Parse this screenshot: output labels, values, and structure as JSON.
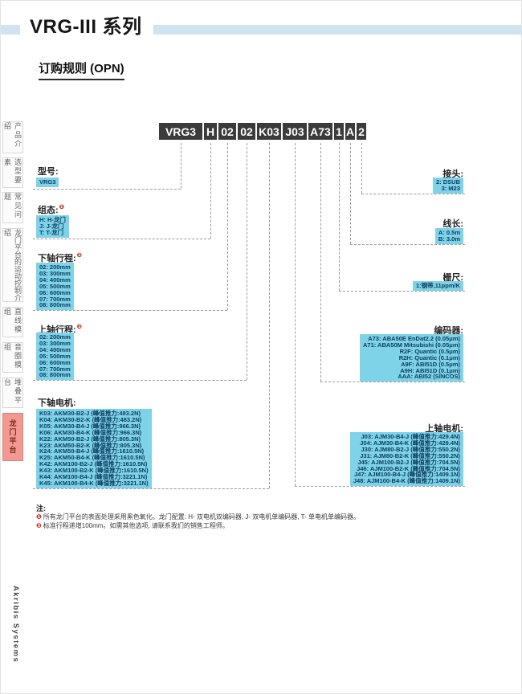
{
  "header": {
    "title": "VRG-III 系列",
    "subtitle": "订购规则 (OPN)"
  },
  "brand": {
    "vertical_text": "Akribis Systems"
  },
  "sidebar": {
    "tabs": [
      {
        "label": "产品介绍",
        "active": false
      },
      {
        "label": "选型要素",
        "active": false
      },
      {
        "label": "常见问题",
        "active": false
      },
      {
        "label": "龙门平台的运动控制介绍",
        "active": false
      },
      {
        "label": "直线模组",
        "active": false
      },
      {
        "label": "音圈模组",
        "active": false
      },
      {
        "label": "堆叠平台",
        "active": false
      },
      {
        "label": "龙门平台",
        "active": true
      }
    ]
  },
  "part_number": {
    "segments": [
      "VRG3",
      "H",
      "02",
      "02",
      "K03",
      "J03",
      "A73",
      "1",
      "A",
      "2"
    ]
  },
  "groups": {
    "left": [
      {
        "title": "型号:",
        "marker": "",
        "options": [
          "VRG3"
        ]
      },
      {
        "title": "组态:",
        "marker": "❶",
        "options": [
          "H: H-龙门",
          "J: J-龙门",
          "T: T-龙门"
        ]
      },
      {
        "title": "下轴行程:",
        "marker": "❷",
        "options": [
          "02: 200mm",
          "03: 300mm",
          "04: 400mm",
          "05: 500mm",
          "06: 600mm",
          "07: 700mm",
          "08: 800mm"
        ]
      },
      {
        "title": "上轴行程:",
        "marker": "❷",
        "options": [
          "02: 200mm",
          "03: 300mm",
          "04: 400mm",
          "05: 500mm",
          "06: 600mm",
          "07: 700mm",
          "08: 800mm"
        ]
      },
      {
        "title": "下轴电机:",
        "marker": "",
        "options": [
          "K03: AKM30-B2-J (峰值推力:483.2N)",
          "K04: AKM30-B2-K (峰值推力:483.2N)",
          "K05: AKM30-B4-J (峰值推力:966.3N)",
          "K06: AKM30-B4-K (峰值推力:966.3N)",
          "K22: AKM50-B2-J (峰值推力:805.3N)",
          "K23: AKM50-B2-K (峰值推力:805.3N)",
          "K24: AKM50-B4-J (峰值推力:1610.5N)",
          "K25: AKM50-B4-K (峰值推力:1610.5N)",
          "K42: AKM100-B2-J (峰值推力:1610.5N)",
          "K43: AKM100-B2-K (峰值推力:1610.5N)",
          "K44: AKM100-B4-J (峰值推力:3221.1N)",
          "K45: AKM100-B4-K (峰值推力:3221.1N)"
        ]
      }
    ],
    "right": [
      {
        "title": "接头:",
        "marker": "",
        "options": [
          "2: DSUB",
          "3: M23"
        ]
      },
      {
        "title": "线长:",
        "marker": "",
        "options": [
          "A: 0.5m",
          "B: 3.0m"
        ]
      },
      {
        "title": "栅尺:",
        "marker": "",
        "options": [
          "1:钢带,11ppm/K"
        ]
      },
      {
        "title": "编码器:",
        "marker": "",
        "options": [
          "A73: ABA50E EnDat2.2 (0.05μm)",
          "A71: ABA50M Mitsubishi (0.05μm)",
          "R2F: Quantic (0.5μm)",
          "R2H: Quantic (0.1μm)",
          "A9F: ABI51D (0.5μm)",
          "A9H: ABI51D (0.1μm)",
          "AAA: ABI52 (SINCOS)"
        ]
      },
      {
        "title": "上轴电机:",
        "marker": "",
        "options": [
          "J03: AJM30-B4-J (峰值推力:429.4N)",
          "J04: AJM30-B4-K (峰值推力:429.4N)",
          "J30: AJM80-B2-J (峰值推力:550.2N)",
          "J31: AJM80-B2-K (峰值推力:550.2N)",
          "J45: AJM100-B2-J (峰值推力:704.5N)",
          "J46: AJM100-B2-K (峰值推力:704.5N)",
          "J47: AJM100-B4-J (峰值推力:1409.1N)",
          "J48: AJM100-B4-K (峰值推力:1409.1N)"
        ]
      }
    ]
  },
  "notes": {
    "heading": "注:",
    "items": [
      {
        "marker": "❶",
        "text": "所有龙门平台的表面处理采用黑色氧化。龙门配置: H- 双电机双编码器, J- 双电机单编码器, T- 单电机单编码器。"
      },
      {
        "marker": "❷",
        "text": "标准行程递增100mm。如需其他选项, 请联系我们的销售工程师。"
      }
    ]
  },
  "colors": {
    "band_blue": "#cfe3f1",
    "segment_dark": "#3b3b3b",
    "option_blue": "#7ed3e8",
    "option_text": "#0c3a5e",
    "active_tab": "#f29a92",
    "marker_red": "#cf3323"
  }
}
